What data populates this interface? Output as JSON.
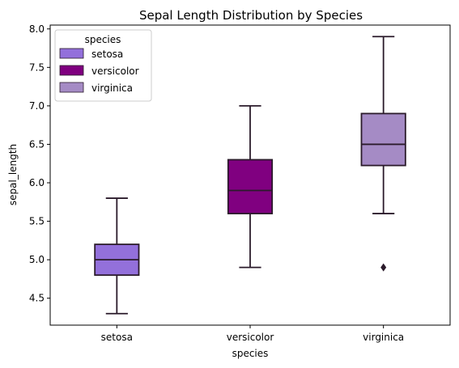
{
  "chart_data": {
    "type": "box",
    "title": "Sepal Length Distribution by Species",
    "xlabel": "species",
    "ylabel": "sepal_length",
    "ylim": [
      4.15,
      8.05
    ],
    "y_ticks": [
      "4.5",
      "5.0",
      "5.5",
      "6.0",
      "6.5",
      "7.0",
      "7.5",
      "8.0"
    ],
    "categories": [
      "setosa",
      "versicolor",
      "virginica"
    ],
    "grid": false,
    "legend": {
      "title": "species",
      "placement": "top-left",
      "entries": [
        "setosa",
        "versicolor",
        "virginica"
      ]
    },
    "series": [
      {
        "name": "setosa",
        "color": "#9370db",
        "whisker_low": 4.3,
        "q1": 4.8,
        "median": 5.0,
        "q3": 5.2,
        "whisker_high": 5.8,
        "outliers": []
      },
      {
        "name": "versicolor",
        "color": "#800080",
        "whisker_low": 4.9,
        "q1": 5.6,
        "median": 5.9,
        "q3": 6.3,
        "whisker_high": 7.0,
        "outliers": []
      },
      {
        "name": "virginica",
        "color": "#a58bc5",
        "whisker_low": 5.6,
        "q1": 6.225,
        "median": 6.5,
        "q3": 6.9,
        "whisker_high": 7.9,
        "outliers": [
          4.9
        ]
      }
    ]
  }
}
